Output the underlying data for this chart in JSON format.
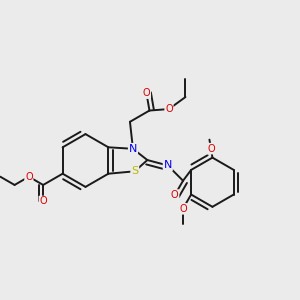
{
  "bg_color": "#ebebeb",
  "bond_color": "#1a1a1a",
  "bond_width": 1.4,
  "dbo": 0.015,
  "atom_colors": {
    "N": "#0000ee",
    "O": "#dd0000",
    "S": "#bbbb00",
    "C": "#1a1a1a"
  },
  "fs": 7.0
}
